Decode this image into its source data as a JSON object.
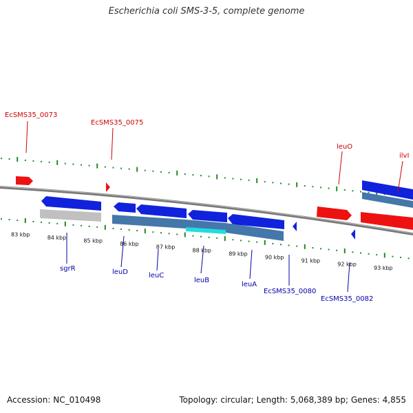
{
  "title": "Escherichia coli SMS-3-5, complete genome",
  "footer": {
    "accession": "Accession: NC_010498",
    "stats": "Topology: circular; Length: 5,068,389 bp; Genes: 4,855"
  },
  "colors": {
    "forward_gene": "#ee1111",
    "reverse_gene": "#1122dd",
    "backbone": "#888888",
    "ticks": "#228822",
    "cds_track": "#4477aa",
    "highlight": "#22dddd",
    "grey_track": "#c0c0c0"
  },
  "kbp_labels": [
    "83 kbp",
    "84 kbp",
    "85 kbp",
    "86 kbp",
    "87 kbp",
    "88 kbp",
    "89 kbp",
    "90 kbp",
    "91 kbp",
    "92 kbp",
    "93 kbp"
  ],
  "gene_labels_top": [
    "EcSMS35_0073",
    "EcSMS35_0075",
    "leuO",
    "ilvI"
  ],
  "gene_labels_bottom": [
    "sgrR",
    "leuD",
    "leuC",
    "leuB",
    "leuA",
    "EcSMS35_0080",
    "EcSMS35_0082"
  ]
}
